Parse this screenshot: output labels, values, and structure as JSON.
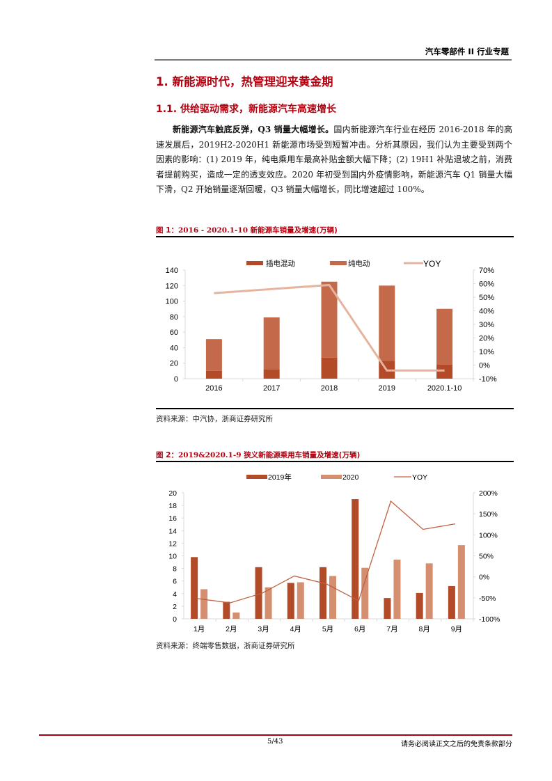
{
  "header": {
    "title": "汽车零部件 II 行业专题"
  },
  "section": {
    "h1": "1. 新能源时代，热管理迎来黄金期",
    "h2": "1.1. 供给驱动需求，新能源汽车高速增长",
    "para_bold": "新能源汽车触底反弹，Q3 销量大幅增长。",
    "para_text": "国内新能源汽车行业在经历 2016-2018 年的高速发展后，2019H2-2020H1 新能源市场受到短暂冲击。分析其原因，我们认为主要受到两个因素的影响：(1) 2019 年，纯电乘用车最高补贴金额大幅下降；(2) 19H1 补贴退坡之前，消费者提前购买，造成一定的透支效应。2020 年初受到国内外疫情影响，新能源汽车 Q1 销量大幅下滑，Q2 开始销量逐渐回暖，Q3 销量大幅增长，同比增速超过 100%。"
  },
  "figure1": {
    "label": "图 1：",
    "range": "2016 - 2020.1-10 ",
    "title": "新能源车销量及增速(万辆)",
    "source": "资料来源：中汽协，浙商证券研究所"
  },
  "figure2": {
    "label": "图 2：",
    "range": "2019&2020.1-9 ",
    "title": "狭义新能源乘用车销量及增速(万辆)",
    "source": "资料来源：终端零售数据，浙商证券研究所"
  },
  "footer": {
    "page": "5/43",
    "disclaimer": "请务必阅读正文之后的免责条款部分"
  },
  "colors": {
    "accent": "#b3000f",
    "phev": "#b34a28",
    "bev": "#c46a4a",
    "yoy1": "#e6b49e",
    "c2019": "#b34a28",
    "c2020": "#d48e70",
    "yoy2": "#c0603f"
  },
  "chart_data": [
    {
      "type": "bar",
      "stacked": true,
      "title": "新能源车销量及增速(万辆)",
      "categories": [
        "2016",
        "2017",
        "2018",
        "2019",
        "2020.1-10"
      ],
      "series": [
        {
          "name": "插电混动",
          "values": [
            10,
            12,
            27,
            23,
            18
          ]
        },
        {
          "name": "纯电动",
          "values": [
            41,
            67,
            98,
            97,
            72
          ]
        },
        {
          "name": "YOY",
          "type": "line",
          "axis": "right",
          "values": [
            53,
            56,
            59,
            -4,
            -4
          ]
        }
      ],
      "totals": [
        51,
        79,
        125,
        120,
        90
      ],
      "ylim": [
        0,
        140
      ],
      "yticks": [
        "0",
        "20",
        "40",
        "60",
        "80",
        "100",
        "120",
        "140"
      ],
      "y2lim": [
        -10,
        70
      ],
      "y2ticks": [
        "-10%",
        "0%",
        "10%",
        "20%",
        "30%",
        "40%",
        "50%",
        "60%",
        "70%"
      ],
      "legend": [
        "插电混动",
        "纯电动",
        "YOY"
      ],
      "legend_position": "top",
      "grid": false
    },
    {
      "type": "bar",
      "title": "狭义新能源乘用车销量及增速(万辆)",
      "categories": [
        "1月",
        "2月",
        "3月",
        "4月",
        "5月",
        "6月",
        "7月",
        "8月",
        "9月"
      ],
      "series": [
        {
          "name": "2019年",
          "values": [
            9.8,
            2.7,
            8.2,
            5.7,
            8.2,
            19.0,
            3.3,
            4.1,
            5.2
          ]
        },
        {
          "name": "2020",
          "values": [
            4.7,
            1.0,
            5.0,
            5.8,
            6.8,
            8.1,
            9.4,
            8.8,
            11.7
          ]
        },
        {
          "name": "YOY",
          "type": "line",
          "axis": "right",
          "values": [
            -52,
            -62,
            -39,
            2,
            -17,
            -57,
            180,
            113,
            126
          ]
        }
      ],
      "ylim": [
        0,
        20
      ],
      "yticks": [
        "0",
        "2",
        "4",
        "6",
        "8",
        "10",
        "12",
        "14",
        "16",
        "18",
        "20"
      ],
      "y2lim": [
        -100,
        200
      ],
      "y2ticks": [
        "-100%",
        "-50%",
        "0%",
        "50%",
        "100%",
        "150%",
        "200%"
      ],
      "legend": [
        "2019年",
        "2020",
        "YOY"
      ],
      "legend_position": "top",
      "grid": false
    }
  ]
}
